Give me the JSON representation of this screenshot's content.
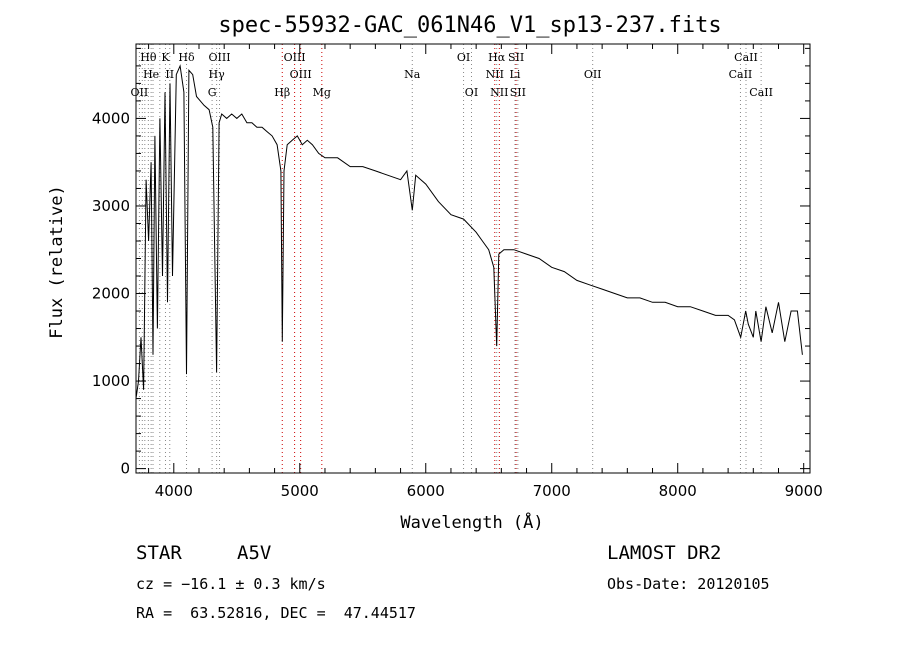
{
  "chart_data": {
    "type": "line",
    "title": "spec-55932-GAC_061N46_V1_sp13-237.fits",
    "xlabel": "Wavelength (Å)",
    "ylabel": "Flux (relative)",
    "xlim": [
      3700,
      9050
    ],
    "ylim": [
      -50,
      4850
    ],
    "xticks": [
      4000,
      5000,
      6000,
      7000,
      8000,
      9000
    ],
    "yticks": [
      0,
      1000,
      2000,
      3000,
      4000
    ],
    "grid": false,
    "series": [
      {
        "x": [
          3700,
          3720,
          3740,
          3760,
          3780,
          3800,
          3820,
          3835,
          3850,
          3870,
          3890,
          3910,
          3930,
          3950,
          3970,
          3990,
          4020,
          4050,
          4080,
          4101,
          4120,
          4150,
          4180,
          4210,
          4240,
          4280,
          4310,
          4340,
          4360,
          4380,
          4420,
          4460,
          4500,
          4540,
          4580,
          4620,
          4660,
          4700,
          4740,
          4780,
          4820,
          4850,
          4861,
          4875,
          4900,
          4940,
          4980,
          5020,
          5060,
          5100,
          5150,
          5200,
          5300,
          5400,
          5500,
          5600,
          5700,
          5800,
          5850,
          5893,
          5920,
          6000,
          6100,
          6200,
          6300,
          6400,
          6450,
          6500,
          6540,
          6563,
          6580,
          6620,
          6700,
          6800,
          6900,
          7000,
          7100,
          7200,
          7300,
          7400,
          7500,
          7600,
          7700,
          7800,
          7900,
          8000,
          8100,
          8200,
          8300,
          8400,
          8450,
          8500,
          8540,
          8560,
          8600,
          8620,
          8662,
          8700,
          8750,
          8800,
          8850,
          8900,
          8950,
          8990
        ],
        "y": [
          800,
          1000,
          1500,
          900,
          3300,
          2600,
          3500,
          1300,
          3800,
          1600,
          4000,
          2200,
          4300,
          1900,
          4400,
          2200,
          4500,
          4600,
          4300,
          1080,
          4550,
          4500,
          4250,
          4200,
          4150,
          4100,
          3900,
          1100,
          3950,
          4050,
          4000,
          4050,
          4000,
          4050,
          3950,
          3950,
          3900,
          3900,
          3850,
          3800,
          3700,
          3400,
          1450,
          3400,
          3700,
          3750,
          3800,
          3700,
          3750,
          3700,
          3600,
          3550,
          3550,
          3450,
          3450,
          3400,
          3350,
          3300,
          3400,
          2950,
          3350,
          3250,
          3050,
          2900,
          2850,
          2700,
          2600,
          2500,
          2300,
          1400,
          2450,
          2500,
          2500,
          2450,
          2400,
          2300,
          2250,
          2150,
          2100,
          2050,
          2000,
          1950,
          1950,
          1900,
          1900,
          1850,
          1850,
          1800,
          1750,
          1750,
          1700,
          1500,
          1800,
          1650,
          1500,
          1800,
          1450,
          1850,
          1550,
          1900,
          1450,
          1800,
          1800,
          1300
        ]
      }
    ],
    "lines": [
      {
        "name": "Hθ",
        "x": 3798,
        "row": 0
      },
      {
        "name": "K",
        "x": 3934,
        "row": 0
      },
      {
        "name": "Hδ",
        "x": 4101,
        "row": 0
      },
      {
        "name": "OIII",
        "x": 4363,
        "row": 0
      },
      {
        "name": "OIII",
        "x": 4959,
        "row": 0
      },
      {
        "name": "OI",
        "x": 6300,
        "row": 0
      },
      {
        "name": "Hα",
        "x": 6563,
        "row": 0
      },
      {
        "name": "SII",
        "x": 6717,
        "row": 0
      },
      {
        "name": "CaII",
        "x": 8542,
        "row": 0
      },
      {
        "name": "He",
        "x": 3820,
        "row": 1
      },
      {
        "name": "II",
        "x": 3968,
        "row": 1
      },
      {
        "name": "Hγ",
        "x": 4340,
        "row": 1
      },
      {
        "name": "OIII",
        "x": 5007,
        "row": 1
      },
      {
        "name": "Na",
        "x": 5893,
        "row": 1
      },
      {
        "name": "NII",
        "x": 6548,
        "row": 1
      },
      {
        "name": "Li",
        "x": 6708,
        "row": 1
      },
      {
        "name": "OII",
        "x": 7325,
        "row": 1
      },
      {
        "name": "CaII",
        "x": 8498,
        "row": 1
      },
      {
        "name": "OII",
        "x": 3727,
        "row": 2
      },
      {
        "name": "G",
        "x": 4304,
        "row": 2
      },
      {
        "name": "Hβ",
        "x": 4861,
        "row": 2
      },
      {
        "name": "Mg",
        "x": 5175,
        "row": 2
      },
      {
        "name": "OI",
        "x": 6363,
        "row": 2
      },
      {
        "name": "NII",
        "x": 6584,
        "row": 2
      },
      {
        "name": "SII",
        "x": 6731,
        "row": 2
      },
      {
        "name": "CaII",
        "x": 8662,
        "row": 2
      }
    ],
    "line_marker_xs": [
      3727,
      3750,
      3770,
      3798,
      3820,
      3835,
      3889,
      3934,
      3968,
      4101,
      4304,
      4340,
      4363,
      4861,
      4959,
      5007,
      5175,
      5893,
      6300,
      6363,
      6548,
      6563,
      6584,
      6708,
      6717,
      6731,
      7325,
      8498,
      8542,
      8662
    ]
  },
  "info": {
    "object_class": "STAR",
    "subclass": "A5V",
    "survey": "LAMOST DR2",
    "cz": "cz = −16.1 ± 0.3 km/s",
    "obs_date": "Obs-Date: 20120105",
    "coords": "RA =  63.52816, DEC =  47.44517"
  },
  "colors": {
    "axis": "#000000",
    "spectrum": "#000000",
    "marker_gray": "#888888",
    "marker_red": "#cc0000"
  }
}
